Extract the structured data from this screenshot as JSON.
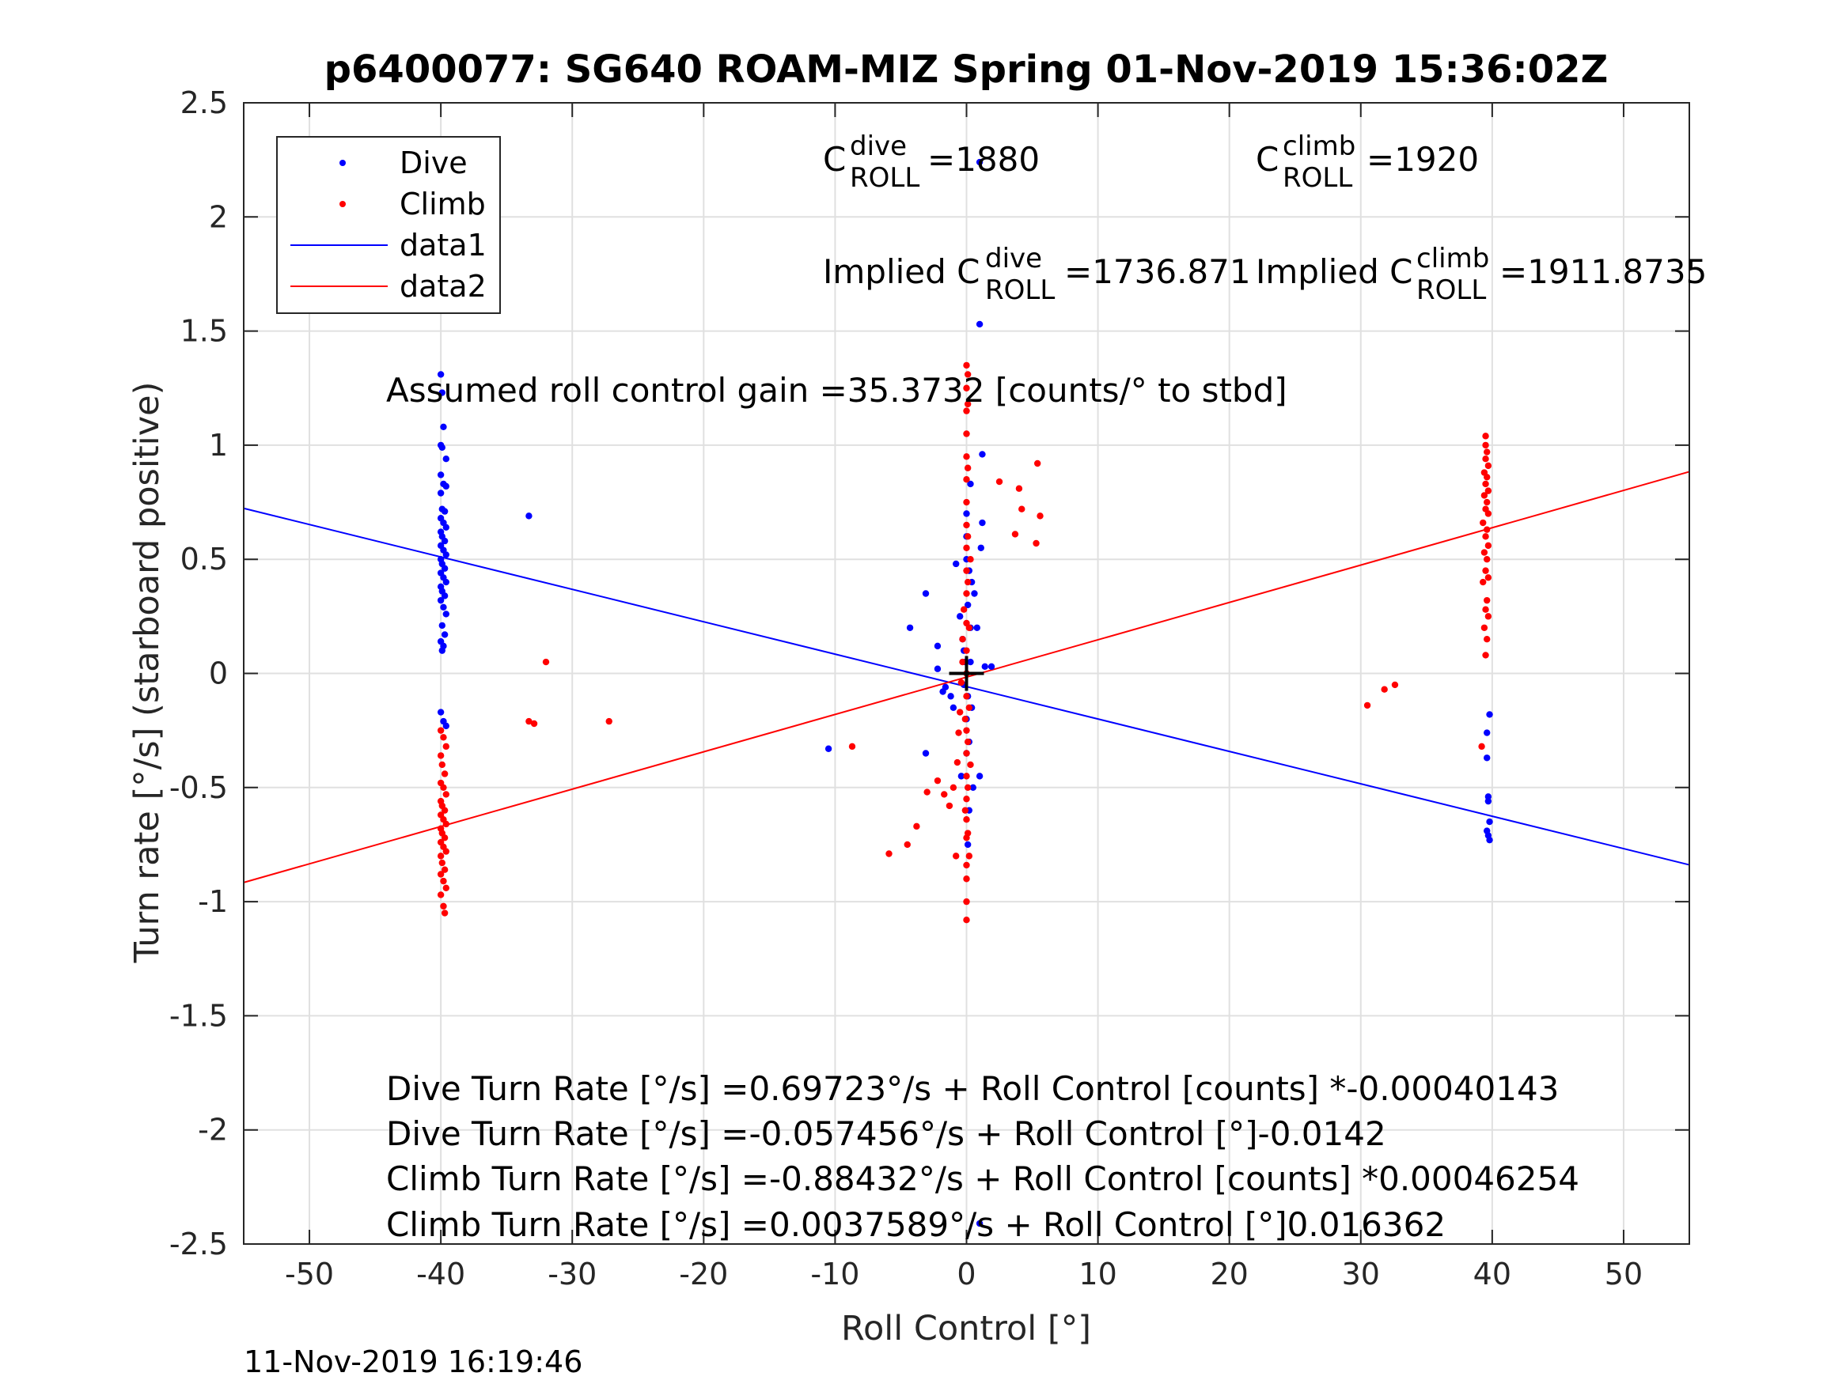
{
  "chart_data": {
    "type": "scatter",
    "title": "p6400077: SG640 ROAM-MIZ Spring 01-Nov-2019 15:36:02Z",
    "xlabel": "Roll Control [°]",
    "ylabel": "Turn rate [°/s] (starboard positive)",
    "xlim": [
      -55,
      55
    ],
    "ylim": [
      -2.5,
      2.5
    ],
    "xticks": [
      -50,
      -40,
      -30,
      -20,
      -10,
      0,
      10,
      20,
      30,
      40,
      50
    ],
    "yticks": [
      2.5,
      2,
      1.5,
      1,
      0.5,
      0,
      -0.5,
      -1,
      -1.5,
      -2,
      -2.5
    ],
    "xtick_labels": [
      "-50",
      "-40",
      "-30",
      "-20",
      "-10",
      "0",
      "10",
      "20",
      "30",
      "40",
      "50"
    ],
    "ytick_labels": [
      "2.5",
      "2",
      "1.5",
      "1",
      "0.5",
      "0",
      "-0.5",
      "-1",
      "-1.5",
      "-2",
      "-2.5"
    ],
    "grid": true,
    "legend_position": "top-left",
    "colors": {
      "dive": "#0000ff",
      "climb": "#ff0000",
      "axis": "#262626",
      "grid": "#e0e0e0"
    },
    "series": [
      {
        "name": "Dive",
        "style": "points",
        "color": "#0000ff",
        "points": [
          [
            -40,
            1.31
          ],
          [
            -39.9,
            1.23
          ],
          [
            -39.8,
            1.08
          ],
          [
            -40,
            1.0
          ],
          [
            -39.9,
            0.99
          ],
          [
            -39.6,
            0.94
          ],
          [
            -40,
            0.87
          ],
          [
            -39.8,
            0.83
          ],
          [
            -39.6,
            0.82
          ],
          [
            -40,
            0.79
          ],
          [
            -39.9,
            0.72
          ],
          [
            -39.7,
            0.71
          ],
          [
            -40,
            0.68
          ],
          [
            -39.8,
            0.66
          ],
          [
            -39.6,
            0.64
          ],
          [
            -40,
            0.62
          ],
          [
            -39.9,
            0.6
          ],
          [
            -39.7,
            0.58
          ],
          [
            -40,
            0.56
          ],
          [
            -39.8,
            0.54
          ],
          [
            -39.6,
            0.52
          ],
          [
            -40,
            0.5
          ],
          [
            -39.9,
            0.48
          ],
          [
            -39.7,
            0.46
          ],
          [
            -40,
            0.44
          ],
          [
            -39.8,
            0.42
          ],
          [
            -39.6,
            0.4
          ],
          [
            -40,
            0.38
          ],
          [
            -39.9,
            0.36
          ],
          [
            -39.7,
            0.34
          ],
          [
            -40,
            0.32
          ],
          [
            -39.8,
            0.29
          ],
          [
            -39.6,
            0.26
          ],
          [
            -39.9,
            0.21
          ],
          [
            -39.7,
            0.17
          ],
          [
            -40,
            0.14
          ],
          [
            -39.8,
            0.12
          ],
          [
            -39.9,
            0.1
          ],
          [
            -40,
            -0.17
          ],
          [
            -39.8,
            -0.21
          ],
          [
            -39.6,
            -0.23
          ],
          [
            -33.3,
            0.69
          ],
          [
            -10.5,
            -0.33
          ],
          [
            -3.1,
            -0.35
          ],
          [
            -3.1,
            0.35
          ],
          [
            -4.3,
            0.2
          ],
          [
            -2.2,
            0.12
          ],
          [
            -2.2,
            0.02
          ],
          [
            -1.8,
            -0.08
          ],
          [
            -1.6,
            -0.06
          ],
          [
            -1.2,
            -0.1
          ],
          [
            -1.0,
            -0.15
          ],
          [
            -0.8,
            0.48
          ],
          [
            -0.5,
            0.25
          ],
          [
            -0.4,
            -0.45
          ],
          [
            -0.3,
            0.15
          ],
          [
            -0.2,
            -0.05
          ],
          [
            -0.1,
            0.05
          ],
          [
            0,
            -0.2
          ],
          [
            0,
            -0.35
          ],
          [
            0,
            0.5
          ],
          [
            0,
            0.6
          ],
          [
            0.1,
            -0.1
          ],
          [
            0.1,
            0.3
          ],
          [
            0.1,
            -0.75
          ],
          [
            0.2,
            0.45
          ],
          [
            0.2,
            -0.3
          ],
          [
            0.3,
            0.05
          ],
          [
            0.3,
            0.2
          ],
          [
            0.4,
            -0.15
          ],
          [
            0.4,
            0.4
          ],
          [
            0.5,
            -0.5
          ],
          [
            0.6,
            0.35
          ],
          [
            0.8,
            0.2
          ],
          [
            1.0,
            -0.45
          ],
          [
            1.1,
            0.55
          ],
          [
            1.2,
            0.66
          ],
          [
            1.2,
            0.96
          ],
          [
            1.4,
            0.03
          ],
          [
            1.9,
            0.03
          ],
          [
            0.3,
            0.83
          ],
          [
            0,
            0.7
          ],
          [
            1.0,
            1.53
          ],
          [
            1.0,
            2.24
          ],
          [
            1.0,
            -2.41
          ],
          [
            -0.2,
            0.1
          ],
          [
            0.2,
            -0.6
          ],
          [
            39.8,
            -0.18
          ],
          [
            39.6,
            -0.26
          ],
          [
            39.6,
            -0.37
          ],
          [
            39.7,
            -0.54
          ],
          [
            39.7,
            -0.56
          ],
          [
            39.8,
            -0.65
          ],
          [
            39.6,
            -0.69
          ],
          [
            39.7,
            -0.71
          ],
          [
            39.8,
            -0.73
          ]
        ]
      },
      {
        "name": "Climb",
        "style": "points",
        "color": "#ff0000",
        "points": [
          [
            -40,
            -0.25
          ],
          [
            -39.8,
            -0.28
          ],
          [
            -39.6,
            -0.32
          ],
          [
            -40,
            -0.36
          ],
          [
            -39.9,
            -0.4
          ],
          [
            -39.7,
            -0.44
          ],
          [
            -40,
            -0.48
          ],
          [
            -39.8,
            -0.5
          ],
          [
            -39.6,
            -0.53
          ],
          [
            -40,
            -0.56
          ],
          [
            -39.9,
            -0.58
          ],
          [
            -39.7,
            -0.6
          ],
          [
            -40,
            -0.62
          ],
          [
            -39.8,
            -0.64
          ],
          [
            -39.6,
            -0.66
          ],
          [
            -40,
            -0.68
          ],
          [
            -39.9,
            -0.7
          ],
          [
            -39.7,
            -0.72
          ],
          [
            -40,
            -0.74
          ],
          [
            -39.8,
            -0.76
          ],
          [
            -39.6,
            -0.78
          ],
          [
            -40,
            -0.8
          ],
          [
            -39.9,
            -0.83
          ],
          [
            -39.7,
            -0.86
          ],
          [
            -40,
            -0.88
          ],
          [
            -39.8,
            -0.91
          ],
          [
            -39.6,
            -0.94
          ],
          [
            -40,
            -0.97
          ],
          [
            -39.8,
            -1.02
          ],
          [
            -39.7,
            -1.05
          ],
          [
            -33.3,
            -0.21
          ],
          [
            -32.9,
            -0.22
          ],
          [
            -32,
            0.05
          ],
          [
            -27.2,
            -0.21
          ],
          [
            -8.7,
            -0.32
          ],
          [
            -5.9,
            -0.79
          ],
          [
            -4.5,
            -0.75
          ],
          [
            -3.8,
            -0.67
          ],
          [
            -3.0,
            -0.52
          ],
          [
            -2.2,
            -0.47
          ],
          [
            -1.7,
            -0.53
          ],
          [
            -1.3,
            -0.58
          ],
          [
            -1.0,
            -0.5
          ],
          [
            -0.8,
            -0.8
          ],
          [
            -0.7,
            -0.39
          ],
          [
            -0.6,
            -0.26
          ],
          [
            -0.5,
            -0.17
          ],
          [
            -0.4,
            -0.04
          ],
          [
            -0.3,
            0.05
          ],
          [
            -0.3,
            0.15
          ],
          [
            -0.2,
            0.28
          ],
          [
            -0.1,
            -0.2
          ],
          [
            -0.1,
            -0.6
          ],
          [
            0,
            -1.08
          ],
          [
            0,
            -1.0
          ],
          [
            0,
            -0.9
          ],
          [
            0,
            -0.84
          ],
          [
            0,
            -0.72
          ],
          [
            0,
            -0.64
          ],
          [
            0,
            -0.55
          ],
          [
            0,
            -0.45
          ],
          [
            0,
            -0.35
          ],
          [
            0,
            -0.25
          ],
          [
            0,
            -0.1
          ],
          [
            0,
            0.0
          ],
          [
            0,
            0.1
          ],
          [
            0,
            0.22
          ],
          [
            0,
            0.35
          ],
          [
            0,
            0.45
          ],
          [
            0,
            0.55
          ],
          [
            0,
            0.65
          ],
          [
            0,
            0.75
          ],
          [
            0,
            0.85
          ],
          [
            0,
            0.95
          ],
          [
            0,
            1.05
          ],
          [
            0,
            1.15
          ],
          [
            0,
            1.25
          ],
          [
            0,
            1.35
          ],
          [
            0.1,
            1.31
          ],
          [
            0.1,
            1.18
          ],
          [
            0.1,
            0.9
          ],
          [
            0.1,
            0.6
          ],
          [
            0.1,
            0.4
          ],
          [
            0.1,
            -0.3
          ],
          [
            0.1,
            -0.5
          ],
          [
            0.1,
            -0.7
          ],
          [
            0.2,
            -0.15
          ],
          [
            0.2,
            0.2
          ],
          [
            0.2,
            -0.8
          ],
          [
            0.3,
            0.5
          ],
          [
            0.3,
            -0.4
          ],
          [
            2.5,
            0.84
          ],
          [
            4.0,
            0.81
          ],
          [
            4.2,
            0.72
          ],
          [
            3.7,
            0.61
          ],
          [
            5.4,
            0.92
          ],
          [
            5.6,
            0.69
          ],
          [
            5.3,
            0.57
          ],
          [
            30.5,
            -0.14
          ],
          [
            31.8,
            -0.07
          ],
          [
            32.6,
            -0.05
          ],
          [
            39.2,
            -0.32
          ],
          [
            39.5,
            0.08
          ],
          [
            39.6,
            0.15
          ],
          [
            39.4,
            0.2
          ],
          [
            39.7,
            0.25
          ],
          [
            39.5,
            0.28
          ],
          [
            39.6,
            0.32
          ],
          [
            39.3,
            0.4
          ],
          [
            39.7,
            0.42
          ],
          [
            39.5,
            0.45
          ],
          [
            39.6,
            0.5
          ],
          [
            39.4,
            0.53
          ],
          [
            39.7,
            0.56
          ],
          [
            39.5,
            0.6
          ],
          [
            39.6,
            0.63
          ],
          [
            39.3,
            0.66
          ],
          [
            39.7,
            0.7
          ],
          [
            39.5,
            0.72
          ],
          [
            39.6,
            0.75
          ],
          [
            39.4,
            0.78
          ],
          [
            39.7,
            0.8
          ],
          [
            39.5,
            0.83
          ],
          [
            39.6,
            0.86
          ],
          [
            39.4,
            0.88
          ],
          [
            39.7,
            0.91
          ],
          [
            39.5,
            0.94
          ],
          [
            39.6,
            0.97
          ],
          [
            39.5,
            1.0
          ],
          [
            39.5,
            1.04
          ]
        ]
      },
      {
        "name": "data1",
        "style": "line",
        "color": "#0000ff",
        "points": [
          [
            -55,
            0.7233
          ],
          [
            55,
            -0.8387
          ]
        ]
      },
      {
        "name": "data2",
        "style": "line",
        "color": "#ff0000",
        "points": [
          [
            -55,
            -0.9161
          ],
          [
            55,
            0.8837
          ]
        ]
      }
    ],
    "origin_marker": [
      0,
      0
    ],
    "annotations": {
      "c_dive": {
        "pre": "C",
        "sup": "dive",
        "sub": "ROLL",
        "post": "=1880"
      },
      "c_climb": {
        "pre": "C",
        "sup": "climb",
        "sub": "ROLL",
        "post": "=1920"
      },
      "implied_dive": {
        "pre": "Implied C",
        "sup": "dive",
        "sub": "ROLL",
        "post": "=1736.871"
      },
      "implied_climb": {
        "pre": "Implied C",
        "sup": "climb",
        "sub": "ROLL",
        "post": "=1911.8735"
      },
      "gain": "Assumed roll control gain =35.3732 [counts/° to stbd]",
      "eq1": "Dive Turn Rate [°/s] =0.69723°/s + Roll Control [counts] *-0.00040143",
      "eq2": "Dive Turn Rate [°/s] =-0.057456°/s + Roll Control [°]-0.0142",
      "eq3": "Climb Turn Rate [°/s] =-0.88432°/s + Roll Control [counts] *0.00046254",
      "eq4": "Climb Turn Rate [°/s] =0.0037589°/s + Roll Control [°]0.016362"
    },
    "timestamp": "11-Nov-2019 16:19:46"
  }
}
